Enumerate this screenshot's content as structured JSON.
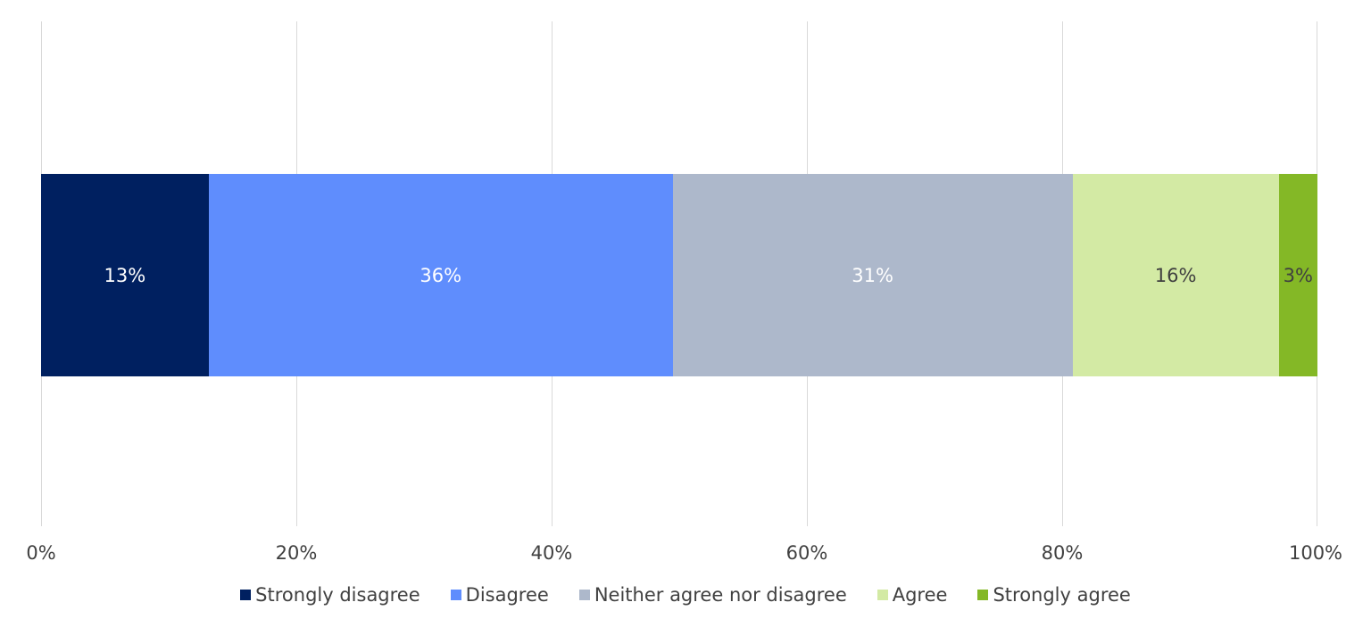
{
  "chart_data": {
    "type": "bar",
    "orientation": "horizontal",
    "stacked": "percent",
    "title": "",
    "xlabel": "",
    "ylabel": "",
    "xlim": [
      0,
      100
    ],
    "grid": true,
    "legend_position": "bottom",
    "categories": [
      ""
    ],
    "x_ticks": [
      "0%",
      "20%",
      "40%",
      "60%",
      "80%",
      "100%"
    ],
    "series": [
      {
        "name": "Strongly disagree",
        "values": [
          13
        ],
        "label": "13%",
        "color": "#002060",
        "label_color": "#ffffff"
      },
      {
        "name": "Disagree",
        "values": [
          36
        ],
        "label": "36%",
        "color": "#5f8dfd",
        "label_color": "#ffffff"
      },
      {
        "name": "Neither agree nor disagree",
        "values": [
          31
        ],
        "label": "31%",
        "color": "#adb8cb",
        "label_color": "#ffffff"
      },
      {
        "name": "Agree",
        "values": [
          16
        ],
        "label": "16%",
        "color": "#d3eaa4",
        "label_color": "#404040"
      },
      {
        "name": "Strongly agree",
        "values": [
          3
        ],
        "label": "3%",
        "color": "#84b826",
        "label_color": "#404040"
      }
    ]
  }
}
